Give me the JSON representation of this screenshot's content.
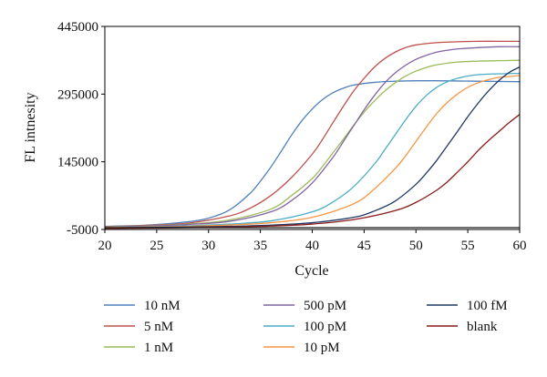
{
  "chart_data": {
    "type": "line",
    "title": "",
    "xlabel": "Cycle",
    "ylabel": "FL intnesity",
    "xlim": [
      20,
      60
    ],
    "ylim": [
      -5000,
      445000
    ],
    "xticks": [
      "20",
      "25",
      "30",
      "35",
      "40",
      "45",
      "50",
      "55",
      "60"
    ],
    "yticks": [
      "445000",
      "295000",
      "145000",
      "-5000"
    ],
    "grid": false,
    "legend_position": "bottom",
    "series": [
      {
        "name": "10 nM",
        "color": "#4f81bd",
        "x": [
          20,
          24,
          28,
          30,
          32,
          34,
          35,
          36,
          37,
          38,
          39,
          40,
          41,
          42,
          43,
          44,
          46,
          48,
          50,
          52,
          54,
          56,
          58,
          60
        ],
        "y": [
          2000,
          4500,
          12000,
          20000,
          38000,
          75000,
          102000,
          133000,
          168000,
          204000,
          236000,
          262000,
          283000,
          298000,
          308000,
          315000,
          321000,
          323500,
          324500,
          324500,
          324000,
          323500,
          323000,
          322500
        ]
      },
      {
        "name": "5 nM",
        "color": "#c0504d",
        "x": [
          20,
          24,
          28,
          32,
          34,
          36,
          38,
          40,
          41,
          42,
          43,
          44,
          45,
          46,
          47,
          48,
          49,
          50,
          52,
          54,
          56,
          58,
          60
        ],
        "y": [
          1500,
          4000,
          9000,
          25000,
          42000,
          70000,
          110000,
          162000,
          195000,
          232000,
          268000,
          302000,
          330000,
          355000,
          374000,
          388000,
          398000,
          404000,
          409000,
          411000,
          412000,
          412000,
          412000
        ]
      },
      {
        "name": "1 nM",
        "color": "#9bbb59",
        "x": [
          20,
          24,
          28,
          32,
          36,
          38,
          40,
          41,
          42,
          43,
          44,
          45,
          46,
          47,
          48,
          49,
          50,
          51,
          52,
          54,
          56,
          58,
          60
        ],
        "y": [
          1000,
          3000,
          7000,
          16000,
          40000,
          70000,
          108000,
          135000,
          165000,
          195000,
          226000,
          255000,
          280000,
          302000,
          320000,
          335000,
          346000,
          354000,
          360000,
          366000,
          368000,
          369000,
          370000
        ]
      },
      {
        "name": "500 pM",
        "color": "#8064a2",
        "x": [
          20,
          24,
          28,
          32,
          36,
          38,
          40,
          42,
          43,
          44,
          45,
          46,
          47,
          48,
          49,
          50,
          51,
          52,
          53,
          54,
          56,
          58,
          60
        ],
        "y": [
          500,
          2500,
          6000,
          13000,
          34000,
          59000,
          98000,
          155000,
          190000,
          225000,
          260000,
          292000,
          320000,
          342000,
          359000,
          372000,
          381000,
          388000,
          392000,
          395000,
          398000,
          400000,
          400000
        ]
      },
      {
        "name": "100 pM",
        "color": "#4bacc6",
        "x": [
          20,
          24,
          28,
          32,
          36,
          40,
          42,
          44,
          46,
          47,
          48,
          49,
          50,
          51,
          52,
          53,
          54,
          55,
          56,
          58,
          60
        ],
        "y": [
          0,
          1000,
          3000,
          7000,
          14000,
          34000,
          56000,
          90000,
          140000,
          172000,
          205000,
          238000,
          268000,
          292000,
          310000,
          322000,
          330000,
          335000,
          338000,
          340000,
          341000
        ]
      },
      {
        "name": "10 pM",
        "color": "#f79646",
        "x": [
          20,
          24,
          28,
          32,
          36,
          40,
          44,
          46,
          48,
          49,
          50,
          51,
          52,
          53,
          54,
          55,
          56,
          57,
          58,
          59,
          60
        ],
        "y": [
          -500,
          500,
          2000,
          5000,
          10000,
          22000,
          52000,
          85000,
          130000,
          158000,
          190000,
          222000,
          252000,
          276000,
          295000,
          310000,
          320000,
          327000,
          332000,
          334000,
          336000
        ]
      },
      {
        "name": "100 fM",
        "color": "#1f3864",
        "x": [
          20,
          24,
          28,
          32,
          36,
          40,
          44,
          46,
          48,
          50,
          51,
          52,
          53,
          54,
          55,
          56,
          57,
          58,
          59,
          60
        ],
        "y": [
          -1500,
          -500,
          500,
          2000,
          4500,
          10000,
          22000,
          36000,
          58000,
          95000,
          120000,
          148000,
          180000,
          212000,
          245000,
          275000,
          302000,
          325000,
          343000,
          355000
        ]
      },
      {
        "name": "blank",
        "color": "#8b1a1a",
        "x": [
          20,
          24,
          28,
          32,
          36,
          40,
          44,
          48,
          50,
          52,
          53,
          54,
          55,
          56,
          57,
          58,
          59,
          60
        ],
        "y": [
          -2500,
          -2000,
          -1000,
          500,
          2500,
          7000,
          17000,
          37000,
          55000,
          82000,
          100000,
          122000,
          145000,
          170000,
          192000,
          212000,
          232000,
          250000
        ]
      },
      {
        "name": "",
        "color": "#1a1a1a",
        "x": [
          20,
          60
        ],
        "y": [
          -1000,
          -1000
        ]
      }
    ]
  }
}
